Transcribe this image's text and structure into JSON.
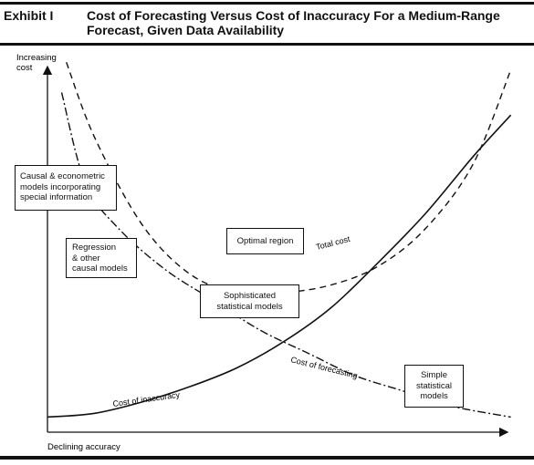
{
  "header": {
    "exhibit": "Exhibit I",
    "title": "Cost of Forecasting Versus Cost of Inaccuracy For a Medium-Range Forecast, Given Data Availability"
  },
  "chart_data": {
    "type": "line",
    "title": "Cost of Forecasting Versus Cost of Inaccuracy For a Medium-Range Forecast, Given Data Availability",
    "ylabel": "Increasing cost",
    "xlabel": "Declining accuracy",
    "xlim": [
      0,
      100
    ],
    "ylim": [
      0,
      100
    ],
    "grid": false,
    "series": [
      {
        "name": "Total cost",
        "style": "dashed",
        "x": [
          4,
          10,
          20,
          30,
          40,
          50,
          60,
          70,
          80,
          90,
          98
        ],
        "y": [
          98,
          78,
          55,
          42,
          37,
          37,
          39,
          44,
          54,
          71,
          96
        ]
      },
      {
        "name": "Cost of forecasting",
        "style": "dash-dot",
        "x": [
          3,
          8,
          15,
          25,
          35,
          45,
          55,
          65,
          75,
          85,
          98
        ],
        "y": [
          90,
          66,
          54,
          43,
          35,
          27,
          21,
          15,
          11,
          7,
          4
        ]
      },
      {
        "name": "Cost of inaccuracy",
        "style": "solid",
        "x": [
          0,
          10,
          20,
          30,
          40,
          50,
          60,
          70,
          80,
          90,
          98
        ],
        "y": [
          4,
          5,
          8,
          12,
          17,
          24,
          33,
          45,
          58,
          73,
          84
        ]
      }
    ],
    "annotations": [
      {
        "id": "causal",
        "lines": [
          "Causal & econometric",
          "models incorporating",
          "special information"
        ]
      },
      {
        "id": "regression",
        "lines": [
          "Regression",
          "& other",
          "causal models"
        ]
      },
      {
        "id": "optimal",
        "lines": [
          "Optimal region"
        ]
      },
      {
        "id": "sophisticated",
        "lines": [
          "Sophisticated",
          "statistical models"
        ]
      },
      {
        "id": "simple",
        "lines": [
          "Simple",
          "statistical",
          "models"
        ]
      }
    ],
    "curve_labels": {
      "total": "Total cost",
      "forecasting": "Cost of forecasting",
      "inaccuracy": "Cost of inaccuracy"
    }
  }
}
